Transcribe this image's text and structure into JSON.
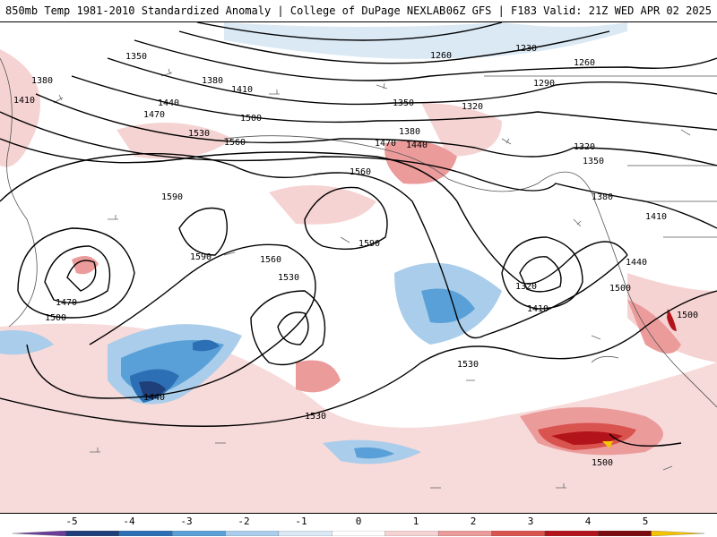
{
  "header": {
    "left_text": "850mb Temp 1981-2010 Standardized Anomaly | College of DuPage NEXLAB",
    "right_text": "06Z GFS | F183 Valid: 21Z WED APR 02 2025"
  },
  "height_labels": [
    "1230",
    "1260",
    "1260",
    "1290",
    "1320",
    "1320",
    "1350",
    "1350",
    "1350",
    "1380",
    "1380",
    "1380",
    "1410",
    "1410",
    "1410",
    "1410",
    "1440",
    "1440",
    "1440",
    "1470",
    "1470",
    "1470",
    "1500",
    "1500",
    "1500",
    "1500",
    "1530",
    "1530",
    "1530",
    "1530",
    "1560",
    "1560",
    "1560",
    "1590",
    "1590",
    "1590",
    "1320",
    "1380",
    "1440",
    "1500"
  ],
  "colorbar": {
    "ticks": [
      "-5",
      "-4",
      "-3",
      "-2",
      "-1",
      "0",
      "1",
      "2",
      "3",
      "4",
      "5"
    ],
    "colors": [
      "#6a3d9a",
      "#1f3f7a",
      "#2c6fb5",
      "#5aa0d8",
      "#a9cdea",
      "#dbe9f5",
      "#ffffff",
      "#f6d3d3",
      "#ec9b9b",
      "#d9534f",
      "#b3141b",
      "#7a0c10",
      "#f5c400"
    ]
  }
}
